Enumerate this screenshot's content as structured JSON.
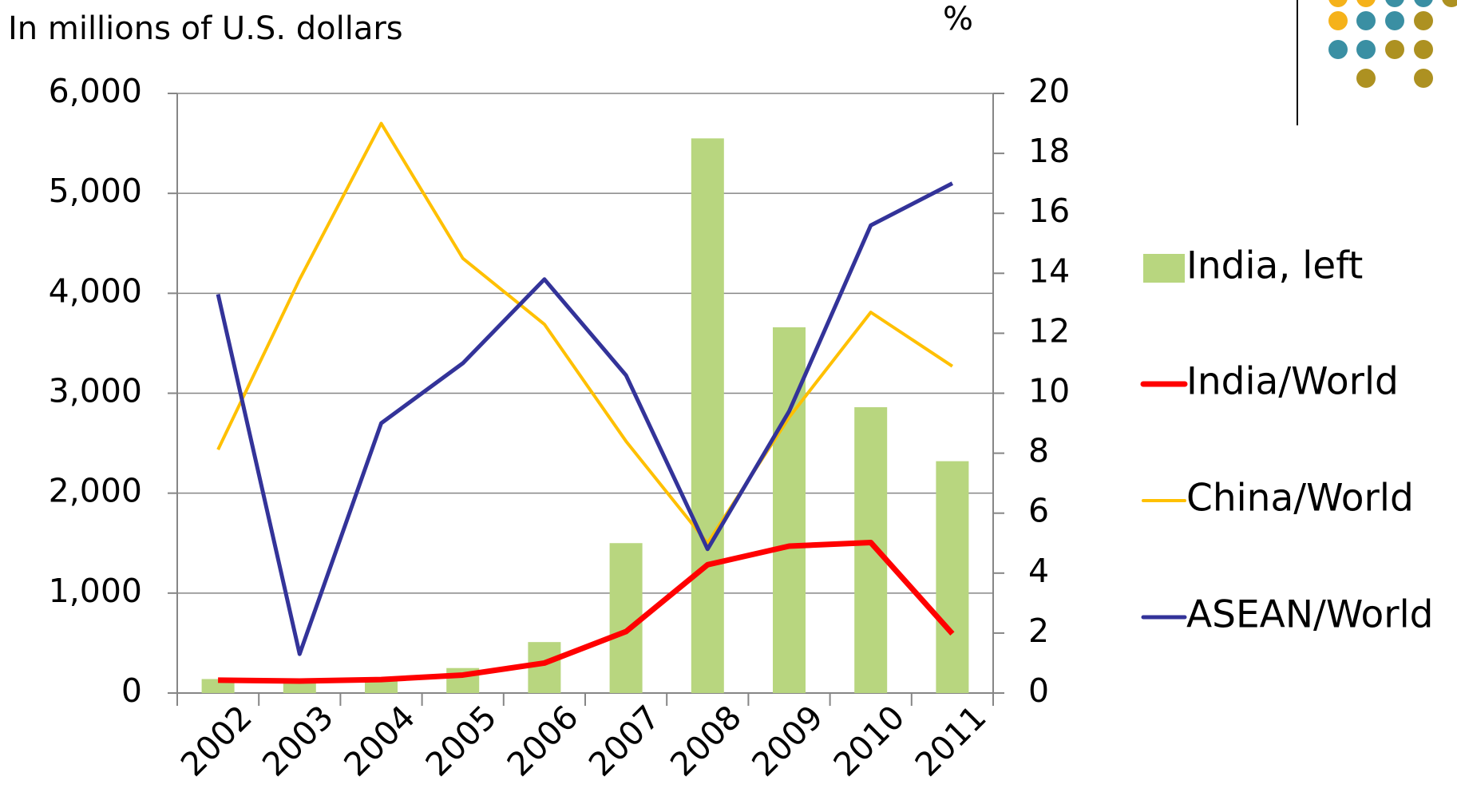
{
  "chart_data": {
    "type": "combo",
    "y_label": "In millions of U.S. dollars",
    "y2_label": "%",
    "categories": [
      "2002",
      "2003",
      "2004",
      "2005",
      "2006",
      "2007",
      "2008",
      "2009",
      "2010",
      "2011"
    ],
    "series": [
      {
        "name": "India, left",
        "type": "bar",
        "color": "#b8d67f",
        "values": [
          140,
          130,
          150,
          250,
          510,
          1500,
          5550,
          3660,
          2860,
          2320
        ]
      },
      {
        "name": "India/World",
        "type": "line",
        "axis": "y2",
        "color": "#ff0000",
        "width": 7,
        "values": [
          0.43,
          0.4,
          0.45,
          0.6,
          1.0,
          2.05,
          4.28,
          4.9,
          5.02,
          1.98
        ]
      },
      {
        "name": "China/World",
        "type": "line",
        "axis": "y2",
        "color": "#ffc000",
        "width": 4,
        "values": [
          8.12,
          13.8,
          19.0,
          14.5,
          12.3,
          8.4,
          5.0,
          9.2,
          12.7,
          10.9
        ]
      },
      {
        "name": "ASEAN/World",
        "type": "line",
        "axis": "y2",
        "color": "#333399",
        "width": 5,
        "values": [
          13.3,
          1.3,
          9.0,
          11.0,
          13.8,
          10.6,
          4.8,
          9.4,
          15.6,
          17.0
        ]
      }
    ],
    "ylim": [
      0,
      6000
    ],
    "yticks": [
      0,
      {
        "value": 1000,
        "label": "1,000"
      },
      {
        "value": 2000,
        "label": "2,000"
      },
      {
        "value": 3000,
        "label": "3,000"
      },
      {
        "value": 4000,
        "label": "4,000"
      },
      {
        "value": 5000,
        "label": "5,000"
      },
      {
        "value": 6000,
        "label": "6,000"
      }
    ],
    "y2lim": [
      0,
      20
    ],
    "y2ticks": [
      0,
      2,
      4,
      6,
      8,
      10,
      12,
      14,
      16,
      18,
      20
    ],
    "grid": true,
    "legend": "right"
  }
}
